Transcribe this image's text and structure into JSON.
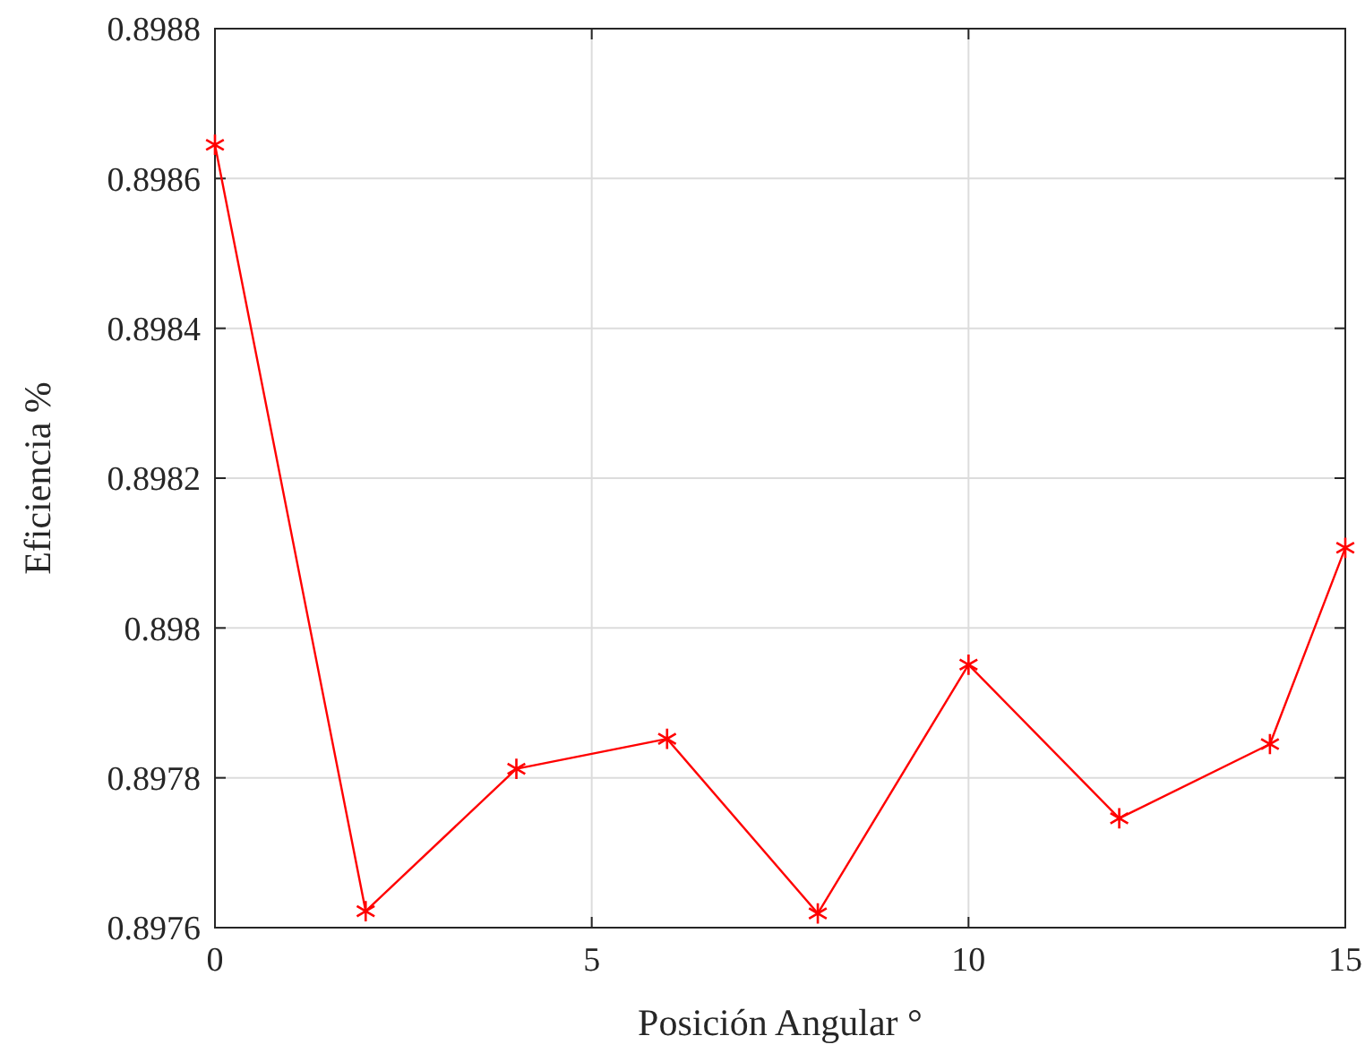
{
  "chart_data": {
    "type": "line",
    "xlabel": "Posición Angular °",
    "ylabel": "Eficiencia %",
    "x": [
      0,
      2,
      4,
      6,
      8,
      10,
      12,
      14,
      15
    ],
    "series": [
      {
        "color": "#ff0000",
        "values": [
          0.898645,
          0.897622,
          0.897812,
          0.897852,
          0.897619,
          0.897951,
          0.897746,
          0.897845,
          0.898107
        ]
      }
    ],
    "xlim": [
      0,
      15
    ],
    "xticks": [
      0,
      5,
      10,
      15
    ],
    "ylim": [
      0.8976,
      0.8988
    ],
    "yticks": [
      0.8976,
      0.8978,
      0.898,
      0.8982,
      0.8984,
      0.8986,
      0.8988
    ],
    "grid": true,
    "marker": "cross",
    "line_style": "solid"
  }
}
